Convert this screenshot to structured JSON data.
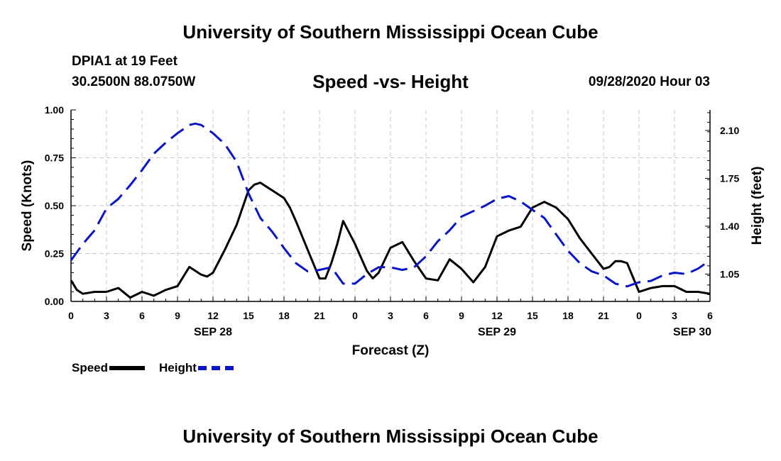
{
  "header": {
    "title": "University of Southern Mississippi Ocean Cube",
    "station": "DPIA1 at 19 Feet",
    "coords": "30.2500N 88.0750W",
    "chart_title": "Speed -vs- Height",
    "datetime": "09/28/2020 Hour 03"
  },
  "footer": {
    "title": "University of Southern Mississippi Ocean Cube"
  },
  "legend": {
    "speed_label": "Speed",
    "height_label": "Height"
  },
  "colors": {
    "speed": "#000000",
    "height": "#0a14c8",
    "grid": "#c8c8c8"
  },
  "chart_data": {
    "type": "line",
    "title": "Speed -vs- Height",
    "xlabel": "Forecast (Z)",
    "ylabel": "Speed (Knots)",
    "y2label": "Height (feet)",
    "xlim": [
      0,
      54
    ],
    "ylim": [
      0,
      1.0
    ],
    "y2lim": [
      0.85,
      2.25
    ],
    "x_ticks": [
      0,
      3,
      6,
      9,
      12,
      15,
      18,
      21,
      24,
      27,
      30,
      33,
      36,
      39,
      42,
      45,
      48,
      51,
      54
    ],
    "x_tick_labels": [
      "0",
      "3",
      "6",
      "9",
      "12",
      "15",
      "18",
      "21",
      "0",
      "3",
      "6",
      "9",
      "12",
      "15",
      "18",
      "21",
      "0",
      "3",
      "6"
    ],
    "y_ticks": [
      0,
      0.25,
      0.5,
      0.75,
      1.0
    ],
    "y_tick_labels": [
      "0.00",
      "0.25",
      "0.50",
      "0.75",
      "1.00"
    ],
    "y2_ticks": [
      1.05,
      1.4,
      1.75,
      2.1
    ],
    "y2_tick_labels": [
      "1.05",
      "1.40",
      "1.75",
      "2.10"
    ],
    "day_labels": [
      {
        "x": 12,
        "label": "SEP 28"
      },
      {
        "x": 36,
        "label": "SEP 29"
      },
      {
        "x": 52.5,
        "label": "SEP 30"
      }
    ],
    "grid": true,
    "series": [
      {
        "name": "Speed",
        "axis": "left",
        "style": "solid",
        "x": [
          0,
          0.5,
          1,
          2,
          3,
          4,
          5,
          6,
          7,
          8,
          9,
          10,
          10.5,
          11,
          11.5,
          12,
          13,
          14,
          15,
          15.5,
          16,
          17,
          18,
          18.5,
          19,
          20,
          21,
          21.5,
          22,
          22.5,
          23,
          24,
          25,
          25.5,
          26,
          27,
          28,
          29,
          30,
          31,
          32,
          33,
          34,
          35,
          36,
          37,
          38,
          39,
          40,
          41,
          42,
          43,
          44,
          45,
          45.5,
          46,
          46.5,
          47,
          48,
          49,
          50,
          51,
          52,
          53,
          54
        ],
        "values": [
          0.11,
          0.06,
          0.04,
          0.05,
          0.05,
          0.07,
          0.02,
          0.05,
          0.03,
          0.06,
          0.08,
          0.18,
          0.16,
          0.14,
          0.13,
          0.15,
          0.27,
          0.4,
          0.58,
          0.61,
          0.62,
          0.58,
          0.54,
          0.49,
          0.42,
          0.27,
          0.12,
          0.12,
          0.2,
          0.3,
          0.42,
          0.3,
          0.16,
          0.12,
          0.15,
          0.28,
          0.31,
          0.21,
          0.12,
          0.11,
          0.22,
          0.17,
          0.1,
          0.18,
          0.34,
          0.37,
          0.39,
          0.49,
          0.52,
          0.49,
          0.43,
          0.33,
          0.25,
          0.17,
          0.18,
          0.21,
          0.21,
          0.2,
          0.05,
          0.07,
          0.08,
          0.08,
          0.05,
          0.05,
          0.04
        ]
      },
      {
        "name": "Height",
        "axis": "right",
        "style": "dashed",
        "x": [
          0,
          1,
          2,
          3,
          4,
          5,
          6,
          7,
          8,
          9,
          10,
          10.5,
          11,
          12,
          13,
          14,
          15,
          16,
          17,
          18,
          19,
          20,
          21,
          22,
          23,
          24,
          25,
          26,
          27,
          28,
          29,
          30,
          31,
          32,
          33,
          34,
          35,
          36,
          37,
          38,
          39,
          40,
          41,
          42,
          43,
          44,
          45,
          46,
          47,
          48,
          49,
          50,
          51,
          52,
          53,
          54
        ],
        "values": [
          1.15,
          1.27,
          1.37,
          1.53,
          1.6,
          1.7,
          1.81,
          1.93,
          2.01,
          2.08,
          2.14,
          2.15,
          2.14,
          2.08,
          2.0,
          1.87,
          1.64,
          1.46,
          1.36,
          1.24,
          1.13,
          1.07,
          1.08,
          1.1,
          0.98,
          0.98,
          1.05,
          1.1,
          1.1,
          1.08,
          1.1,
          1.18,
          1.29,
          1.37,
          1.47,
          1.51,
          1.55,
          1.6,
          1.62,
          1.58,
          1.52,
          1.46,
          1.34,
          1.22,
          1.13,
          1.07,
          1.04,
          0.98,
          0.96,
          0.99,
          1.0,
          1.04,
          1.06,
          1.05,
          1.09,
          1.15
        ]
      }
    ]
  }
}
